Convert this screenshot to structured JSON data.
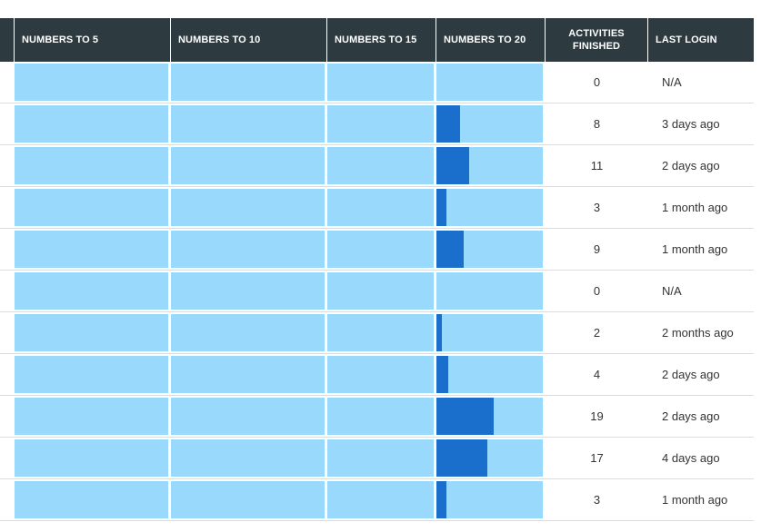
{
  "header": {
    "col_numbers_to_5": "NUMBERS TO 5",
    "col_numbers_to_10": "NUMBERS TO 10",
    "col_numbers_to_15": "NUMBERS TO 15",
    "col_numbers_to_20": "NUMBERS TO 20",
    "col_activities_finished_line1": "ACTIVITIES",
    "col_activities_finished_line2": "FINISHED",
    "col_last_login": "LAST LOGIN"
  },
  "colors": {
    "header_bg": "#2d3a40",
    "progress_bg": "#99d9fb",
    "progress_fill": "#1a6fcc"
  },
  "rows": [
    {
      "n5": 0,
      "n10": 0,
      "n15": 0,
      "n20": 0,
      "activities": "0",
      "last_login": "N/A"
    },
    {
      "n5": 0,
      "n10": 0,
      "n15": 0,
      "n20": 0.22,
      "activities": "8",
      "last_login": "3 days ago"
    },
    {
      "n5": 0,
      "n10": 0,
      "n15": 0,
      "n20": 0.31,
      "activities": "11",
      "last_login": "2 days ago"
    },
    {
      "n5": 0,
      "n10": 0,
      "n15": 0,
      "n20": 0.09,
      "activities": "3",
      "last_login": "1 month ago"
    },
    {
      "n5": 0,
      "n10": 0,
      "n15": 0,
      "n20": 0.26,
      "activities": "9",
      "last_login": "1 month ago"
    },
    {
      "n5": 0,
      "n10": 0,
      "n15": 0,
      "n20": 0,
      "activities": "0",
      "last_login": "N/A"
    },
    {
      "n5": 0,
      "n10": 0,
      "n15": 0,
      "n20": 0.05,
      "activities": "2",
      "last_login": "2 months ago"
    },
    {
      "n5": 0,
      "n10": 0,
      "n15": 0,
      "n20": 0.11,
      "activities": "4",
      "last_login": "2 days ago"
    },
    {
      "n5": 0,
      "n10": 0,
      "n15": 0,
      "n20": 0.54,
      "activities": "19",
      "last_login": "2 days ago"
    },
    {
      "n5": 0,
      "n10": 0,
      "n15": 0,
      "n20": 0.48,
      "activities": "17",
      "last_login": "4 days ago"
    },
    {
      "n5": 0,
      "n10": 0,
      "n15": 0,
      "n20": 0.09,
      "activities": "3",
      "last_login": "1 month ago"
    }
  ]
}
